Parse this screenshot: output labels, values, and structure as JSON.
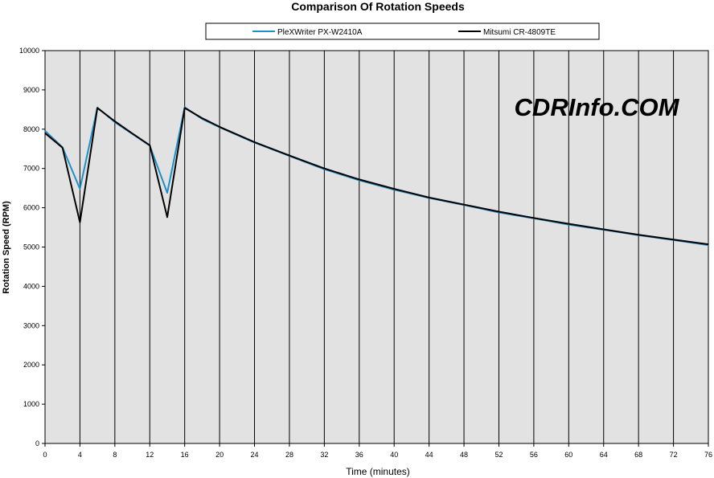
{
  "chart_data": {
    "type": "line",
    "title": "Comparison Of Rotation Speeds",
    "xlabel": "Time (minutes)",
    "ylabel": "Rotation Speed (RPM)",
    "xlim": [
      0,
      76
    ],
    "ylim": [
      0,
      10000
    ],
    "x_ticks": [
      "0",
      "4",
      "8",
      "12",
      "16",
      "20",
      "24",
      "28",
      "32",
      "36",
      "40",
      "44",
      "48",
      "52",
      "56",
      "60",
      "64",
      "68",
      "72",
      "76"
    ],
    "y_ticks": [
      "0",
      "1000",
      "2000",
      "3000",
      "4000",
      "5000",
      "6000",
      "7000",
      "8000",
      "9000",
      "10000"
    ],
    "grid": "vertical",
    "legend_position": "top",
    "watermark": "CDRInfo.COM",
    "series": [
      {
        "name": "PleXWriter PX-W2410A",
        "color": "#1e90c8",
        "x": [
          0,
          2,
          4,
          6,
          8,
          10,
          12,
          14,
          16,
          18,
          20,
          24,
          28,
          32,
          36,
          40,
          44,
          48,
          52,
          56,
          60,
          64,
          68,
          72,
          76
        ],
        "y": [
          7960,
          7540,
          6480,
          8550,
          8180,
          7880,
          7580,
          6380,
          8560,
          8260,
          8050,
          7660,
          7320,
          6980,
          6700,
          6460,
          6250,
          6070,
          5880,
          5730,
          5570,
          5440,
          5300,
          5180,
          5050
        ]
      },
      {
        "name": "Mitsumi CR-4809TE",
        "color": "#000000",
        "x": [
          0,
          2,
          4,
          6,
          8,
          10,
          12,
          14,
          16,
          18,
          20,
          24,
          28,
          32,
          36,
          40,
          44,
          48,
          52,
          56,
          60,
          64,
          68,
          72,
          76
        ],
        "y": [
          7900,
          7530,
          5630,
          8540,
          8200,
          7890,
          7590,
          5760,
          8540,
          8280,
          8060,
          7670,
          7330,
          7000,
          6720,
          6480,
          6260,
          6080,
          5900,
          5740,
          5590,
          5450,
          5310,
          5190,
          5070
        ]
      }
    ]
  }
}
